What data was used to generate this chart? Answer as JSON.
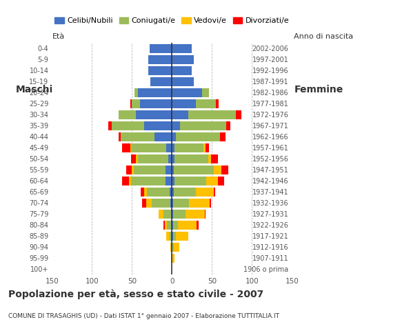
{
  "age_groups": [
    "0-4",
    "5-9",
    "10-14",
    "15-19",
    "20-24",
    "25-29",
    "30-34",
    "35-39",
    "40-44",
    "45-49",
    "50-54",
    "55-59",
    "60-64",
    "65-69",
    "70-74",
    "75-79",
    "80-84",
    "85-89",
    "90-94",
    "95-99",
    "100+"
  ],
  "birth_years": [
    "2002-2006",
    "1997-2001",
    "1992-1996",
    "1987-1991",
    "1982-1986",
    "1977-1981",
    "1972-1976",
    "1967-1971",
    "1962-1966",
    "1957-1961",
    "1952-1956",
    "1947-1951",
    "1942-1946",
    "1937-1941",
    "1932-1936",
    "1927-1931",
    "1922-1926",
    "1917-1921",
    "1912-1916",
    "1907-1911",
    "1906 o prima"
  ],
  "males": {
    "celibe": [
      28,
      30,
      30,
      27,
      43,
      40,
      45,
      35,
      22,
      7,
      5,
      8,
      8,
      3,
      2,
      0,
      0,
      0,
      0,
      0,
      0
    ],
    "coniugato": [
      0,
      0,
      0,
      0,
      4,
      10,
      22,
      40,
      42,
      44,
      38,
      40,
      43,
      28,
      23,
      11,
      6,
      3,
      1,
      0,
      0
    ],
    "vedovo": [
      0,
      0,
      0,
      0,
      0,
      0,
      0,
      0,
      0,
      1,
      2,
      2,
      3,
      4,
      7,
      6,
      3,
      4,
      1,
      1,
      0
    ],
    "divorziato": [
      0,
      0,
      0,
      0,
      0,
      2,
      0,
      5,
      3,
      10,
      6,
      7,
      8,
      4,
      5,
      0,
      2,
      0,
      0,
      0,
      0
    ]
  },
  "females": {
    "nubile": [
      25,
      27,
      25,
      27,
      38,
      30,
      20,
      10,
      5,
      3,
      3,
      2,
      3,
      2,
      1,
      1,
      1,
      1,
      0,
      0,
      0
    ],
    "coniugata": [
      0,
      0,
      0,
      0,
      8,
      25,
      60,
      58,
      55,
      36,
      42,
      50,
      40,
      28,
      20,
      16,
      6,
      4,
      2,
      0,
      0
    ],
    "vedova": [
      0,
      0,
      0,
      0,
      0,
      0,
      0,
      0,
      0,
      3,
      4,
      10,
      14,
      22,
      26,
      24,
      24,
      15,
      7,
      3,
      0
    ],
    "divorziata": [
      0,
      0,
      0,
      0,
      0,
      3,
      7,
      5,
      7,
      4,
      8,
      8,
      8,
      2,
      2,
      1,
      2,
      0,
      0,
      0,
      0
    ]
  },
  "colors": {
    "celibe": "#4472C4",
    "coniugato": "#9BBB59",
    "vedovo": "#FFC000",
    "divorziato": "#FF0000"
  },
  "title": "Popolazione per età, sesso e stato civile - 2007",
  "subtitle": "COMUNE DI TRASAGHIS (UD) - Dati ISTAT 1° gennaio 2007 - Elaborazione TUTTITALIA.IT",
  "xlabel_left": "Maschi",
  "xlabel_right": "Femmine",
  "ylabel_left": "Età",
  "ylabel_right": "Anno di nascita",
  "xlim": 150,
  "legend_labels": [
    "Celibi/Nubili",
    "Coniugati/e",
    "Vedovi/e",
    "Divorziati/e"
  ],
  "bg_color": "#FFFFFF",
  "plot_bg": "#FFFFFF",
  "grid_color": "#BBBBBB",
  "bar_height": 0.85
}
